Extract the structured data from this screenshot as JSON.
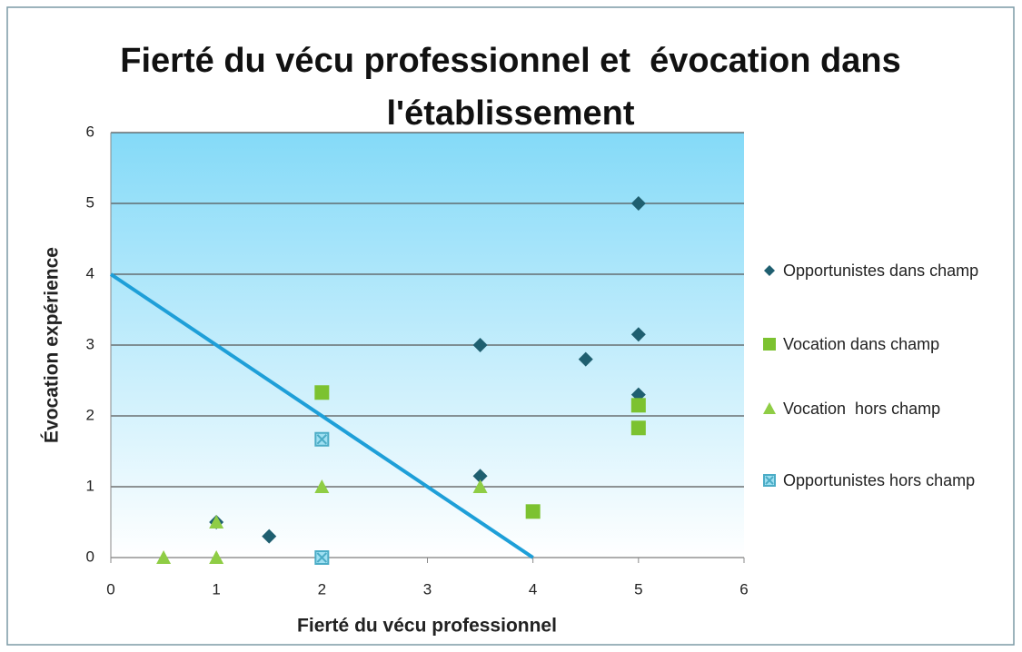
{
  "chart_data": {
    "type": "scatter",
    "title": "Fierté du vécu professionnel et  évocation dans l'établissement",
    "xlabel": "Fierté du vécu professionnel",
    "ylabel": "Évocation expérience",
    "xlim": [
      0,
      6
    ],
    "xticks": [
      0,
      1,
      2,
      3,
      4,
      5,
      6
    ],
    "ylim": [
      0,
      6
    ],
    "yticks": [
      0,
      1,
      2,
      3,
      4,
      5,
      6
    ],
    "grid": true,
    "legend": "right",
    "series": [
      {
        "name": "Opportunistes dans champ",
        "color": "#1f5f70",
        "marker": "diamond",
        "x": [
          1,
          1.5,
          3.5,
          3.5,
          4.5,
          5,
          5,
          5
        ],
        "values": [
          0.5,
          0.3,
          3.0,
          1.15,
          2.8,
          5,
          3.15,
          2.3
        ]
      },
      {
        "name": "Vocation dans champ",
        "color": "#7cc230",
        "marker": "square",
        "x": [
          2,
          4,
          5,
          5
        ],
        "values": [
          2.33,
          0.65,
          2.15,
          1.83
        ]
      },
      {
        "name": "Vocation  hors champ",
        "color": "#8fcd45",
        "marker": "triangle",
        "x": [
          0.5,
          1,
          1,
          2,
          3.5
        ],
        "values": [
          0,
          0,
          0.5,
          1,
          1
        ]
      },
      {
        "name": "Opportunistes hors champ",
        "color": "#4bacc6",
        "marker": "x-square",
        "x": [
          2,
          2
        ],
        "values": [
          1.67,
          0
        ]
      }
    ],
    "line": {
      "color": "#1e9fd8",
      "x": [
        0,
        4
      ],
      "values": [
        4,
        0
      ]
    }
  }
}
